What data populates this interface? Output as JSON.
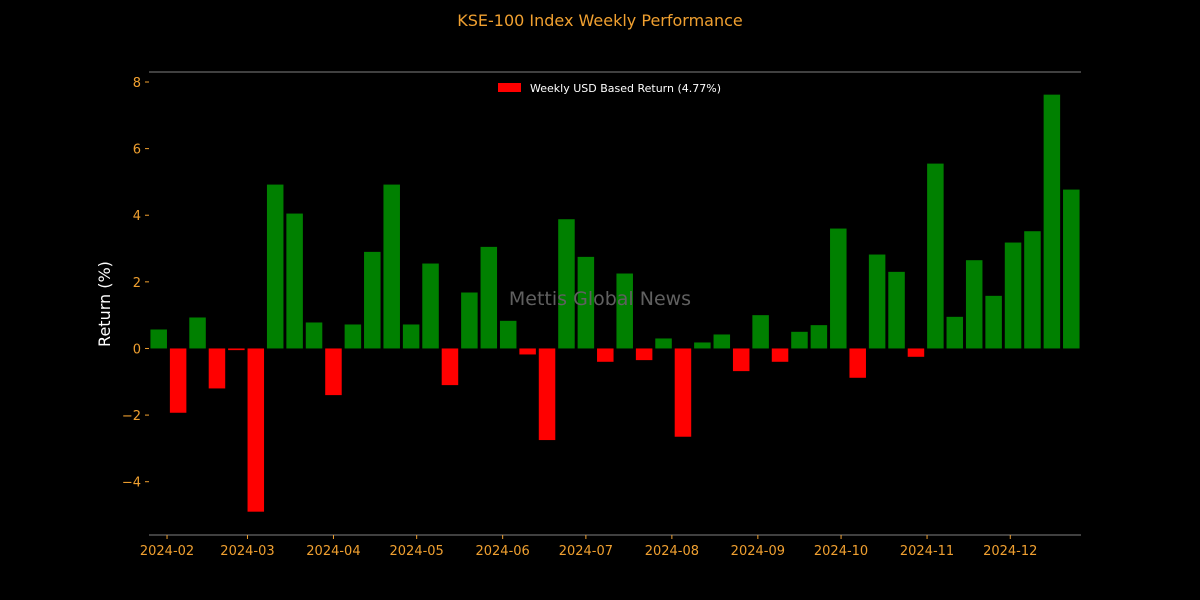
{
  "chart_data": {
    "type": "bar",
    "title": "KSE-100 Index Weekly Performance",
    "xlabel": "",
    "ylabel": "Return (%)",
    "ylim": [
      -5.6,
      8.3
    ],
    "yticks": [
      -4,
      -2,
      0,
      2,
      4,
      6,
      8
    ],
    "yticks_labels": [
      "−4",
      "−2",
      "0",
      "2",
      "4",
      "6",
      "8"
    ],
    "month_ticks": [
      "2024-02",
      "2024-03",
      "2024-04",
      "2024-05",
      "2024-06",
      "2024-07",
      "2024-08",
      "2024-09",
      "2024-10",
      "2024-11",
      "2024-12"
    ],
    "series": [
      {
        "name": "Weekly USD Based Return (4.77%)",
        "values": [
          0.57,
          -1.93,
          0.93,
          -1.2,
          -0.05,
          -4.9,
          4.92,
          4.05,
          0.78,
          -1.4,
          0.72,
          2.9,
          4.92,
          0.72,
          2.55,
          -1.1,
          1.68,
          3.05,
          0.83,
          -0.18,
          -2.75,
          3.88,
          2.75,
          -0.4,
          2.25,
          -0.35,
          0.3,
          -2.65,
          0.18,
          0.42,
          -0.68,
          1.0,
          -0.4,
          0.5,
          0.7,
          3.6,
          -0.88,
          2.82,
          2.3,
          -0.25,
          5.55,
          0.95,
          2.65,
          1.58,
          3.18,
          3.52,
          7.62,
          4.77
        ]
      }
    ],
    "colors": {
      "positive": "#008000",
      "negative": "#ff0000",
      "background": "#000000",
      "accent": "#f0a030",
      "axis": "#808080"
    },
    "legend": {
      "placement": "upper-center",
      "label": "Weekly USD Based Return (4.77%)",
      "swatch_color": "#ff0000"
    },
    "grid": false,
    "watermark": "Mettis Global News"
  }
}
